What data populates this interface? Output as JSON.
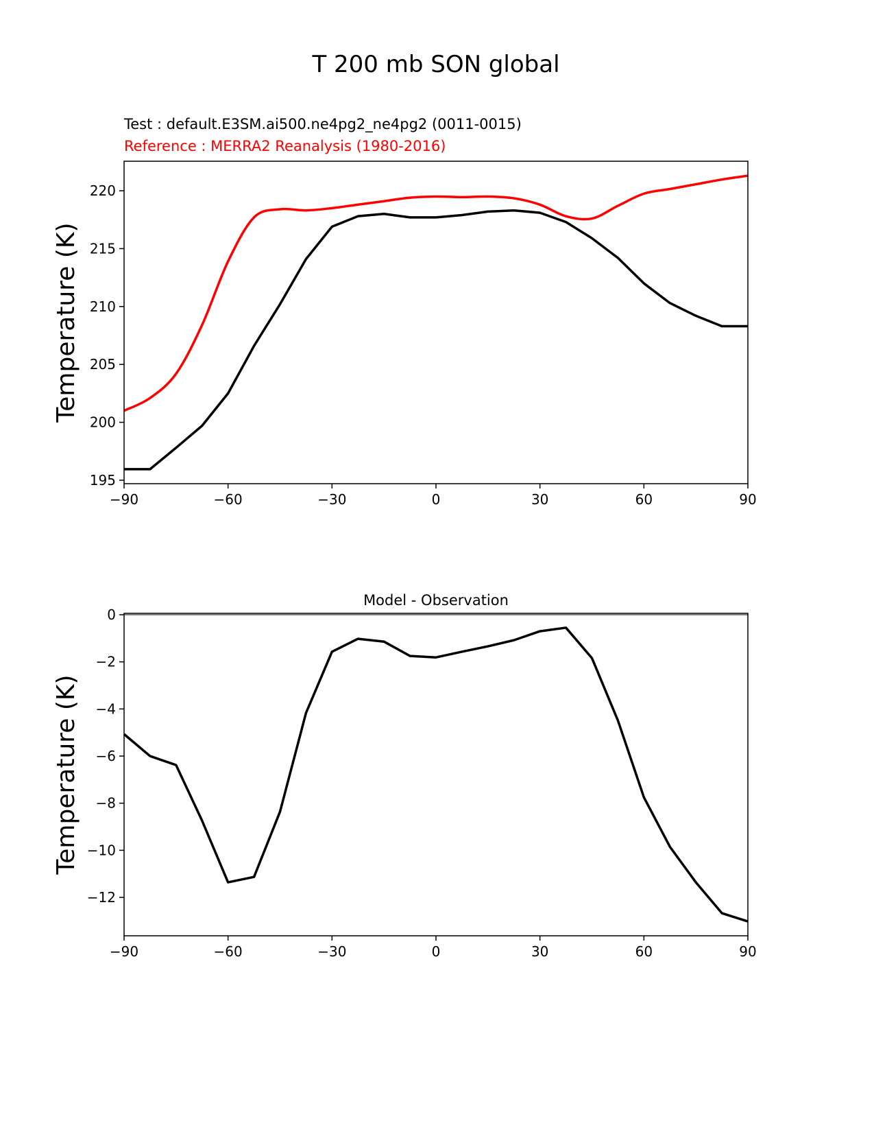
{
  "title": "T 200 mb SON global",
  "chart_data": [
    {
      "type": "line",
      "test_label": "Test : default.E3SM.ai500.ne4pg2_ne4pg2 (0011-0015)",
      "reference_label": "Reference : MERRA2 Reanalysis (1980-2016)",
      "xlabel": "",
      "ylabel": "Temperature (K)",
      "xlim": [
        -90,
        90
      ],
      "ylim": [
        194.7,
        222.55
      ],
      "xticks": [
        -90,
        -60,
        -30,
        0,
        30,
        60,
        90
      ],
      "xtick_labels": [
        "−90",
        "−60",
        "−30",
        "0",
        "30",
        "60",
        "90"
      ],
      "yticks": [
        195,
        200,
        205,
        210,
        215,
        220
      ],
      "ytick_labels": [
        "195",
        "200",
        "205",
        "210",
        "215",
        "220"
      ],
      "x": [
        -90,
        -82.5,
        -75,
        -67.5,
        -60,
        -52.5,
        -45,
        -37.5,
        -30,
        -22.5,
        -15,
        -7.5,
        0,
        7.5,
        15,
        22.5,
        30,
        37.5,
        45,
        52.5,
        60,
        67.5,
        75,
        82.5,
        90
      ],
      "series": [
        {
          "name": "Test",
          "color": "#000000",
          "smooth": false,
          "values": [
            195.95,
            195.95,
            197.8,
            199.7,
            202.5,
            206.6,
            210.2,
            214.1,
            216.9,
            217.8,
            218.0,
            217.7,
            217.7,
            217.9,
            218.2,
            218.3,
            218.1,
            217.3,
            215.9,
            214.2,
            212.0,
            210.3,
            209.2,
            208.3,
            208.3
          ]
        },
        {
          "name": "Reference",
          "color": "#ff0000",
          "smooth": true,
          "values": [
            201.0,
            202.1,
            204.2,
            208.4,
            213.9,
            217.7,
            218.4,
            218.3,
            218.5,
            218.8,
            219.1,
            219.4,
            219.5,
            219.45,
            219.5,
            219.35,
            218.8,
            217.8,
            217.6,
            218.7,
            219.75,
            220.15,
            220.56,
            220.97,
            221.3
          ]
        }
      ]
    },
    {
      "type": "line",
      "title": "Model - Observation",
      "xlabel": "",
      "ylabel": "Temperature (K)",
      "xlim": [
        -90,
        90
      ],
      "ylim": [
        -13.63,
        0.06
      ],
      "xticks": [
        -90,
        -60,
        -30,
        0,
        30,
        60,
        90
      ],
      "xtick_labels": [
        "−90",
        "−60",
        "−30",
        "0",
        "30",
        "60",
        "90"
      ],
      "yticks": [
        0,
        -2,
        -4,
        -6,
        -8,
        -10,
        -12
      ],
      "ytick_labels": [
        "0",
        "−2",
        "−4",
        "−6",
        "−8",
        "−10",
        "−12"
      ],
      "zero_line_color": "#808080",
      "x": [
        -90,
        -82.5,
        -75,
        -67.5,
        -60,
        -52.5,
        -45,
        -37.5,
        -30,
        -22.5,
        -15,
        -7.5,
        0,
        7.5,
        15,
        22.5,
        30,
        37.5,
        45,
        52.5,
        60,
        67.5,
        75,
        82.5,
        90
      ],
      "series": [
        {
          "name": "Model - Observation",
          "color": "#000000",
          "smooth": false,
          "values": [
            -5.07,
            -6.0,
            -6.38,
            -8.74,
            -11.36,
            -11.13,
            -8.36,
            -4.17,
            -1.57,
            -1.02,
            -1.14,
            -1.75,
            -1.81,
            -1.57,
            -1.34,
            -1.08,
            -0.7,
            -0.55,
            -1.84,
            -4.49,
            -7.75,
            -9.85,
            -11.36,
            -12.67,
            -13.02
          ]
        }
      ]
    }
  ]
}
